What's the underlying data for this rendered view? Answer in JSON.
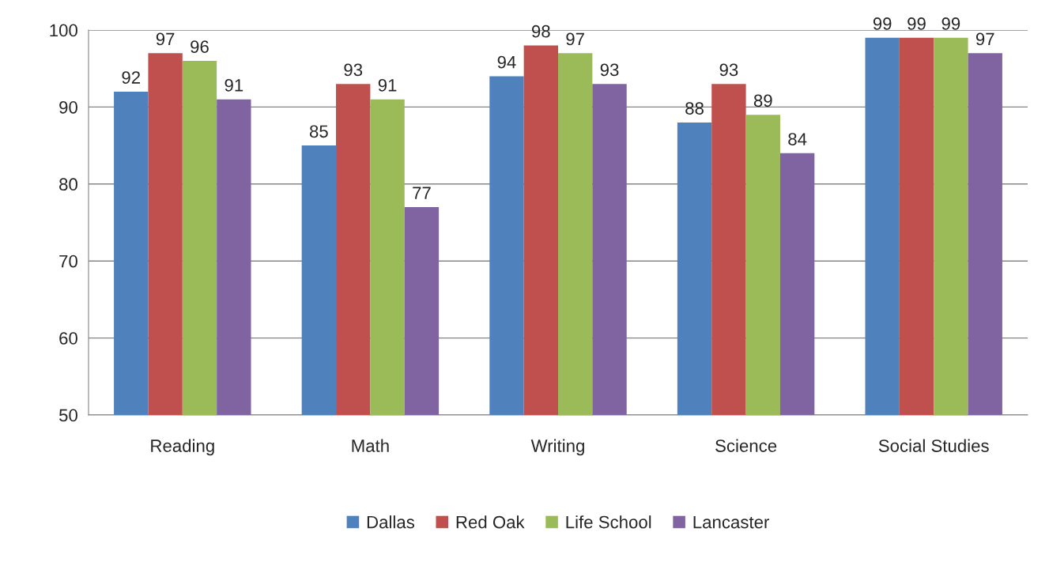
{
  "chart_data": {
    "type": "bar",
    "categories": [
      "Reading",
      "Math",
      "Writing",
      "Science",
      "Social Studies"
    ],
    "series": [
      {
        "name": "Dallas",
        "color": "#4f81bd",
        "values": [
          92,
          85,
          94,
          88,
          99
        ]
      },
      {
        "name": "Red Oak",
        "color": "#c0504d",
        "values": [
          97,
          93,
          98,
          93,
          99
        ]
      },
      {
        "name": "Life School",
        "color": "#9bbb59",
        "values": [
          96,
          91,
          97,
          89,
          99
        ]
      },
      {
        "name": "Lancaster",
        "color": "#8064a2",
        "values": [
          91,
          77,
          93,
          84,
          97
        ]
      }
    ],
    "ylim": [
      50,
      100
    ],
    "yticks": [
      50,
      60,
      70,
      80,
      90,
      100
    ],
    "grid": "y",
    "legend": "bottom",
    "data_labels": true
  }
}
